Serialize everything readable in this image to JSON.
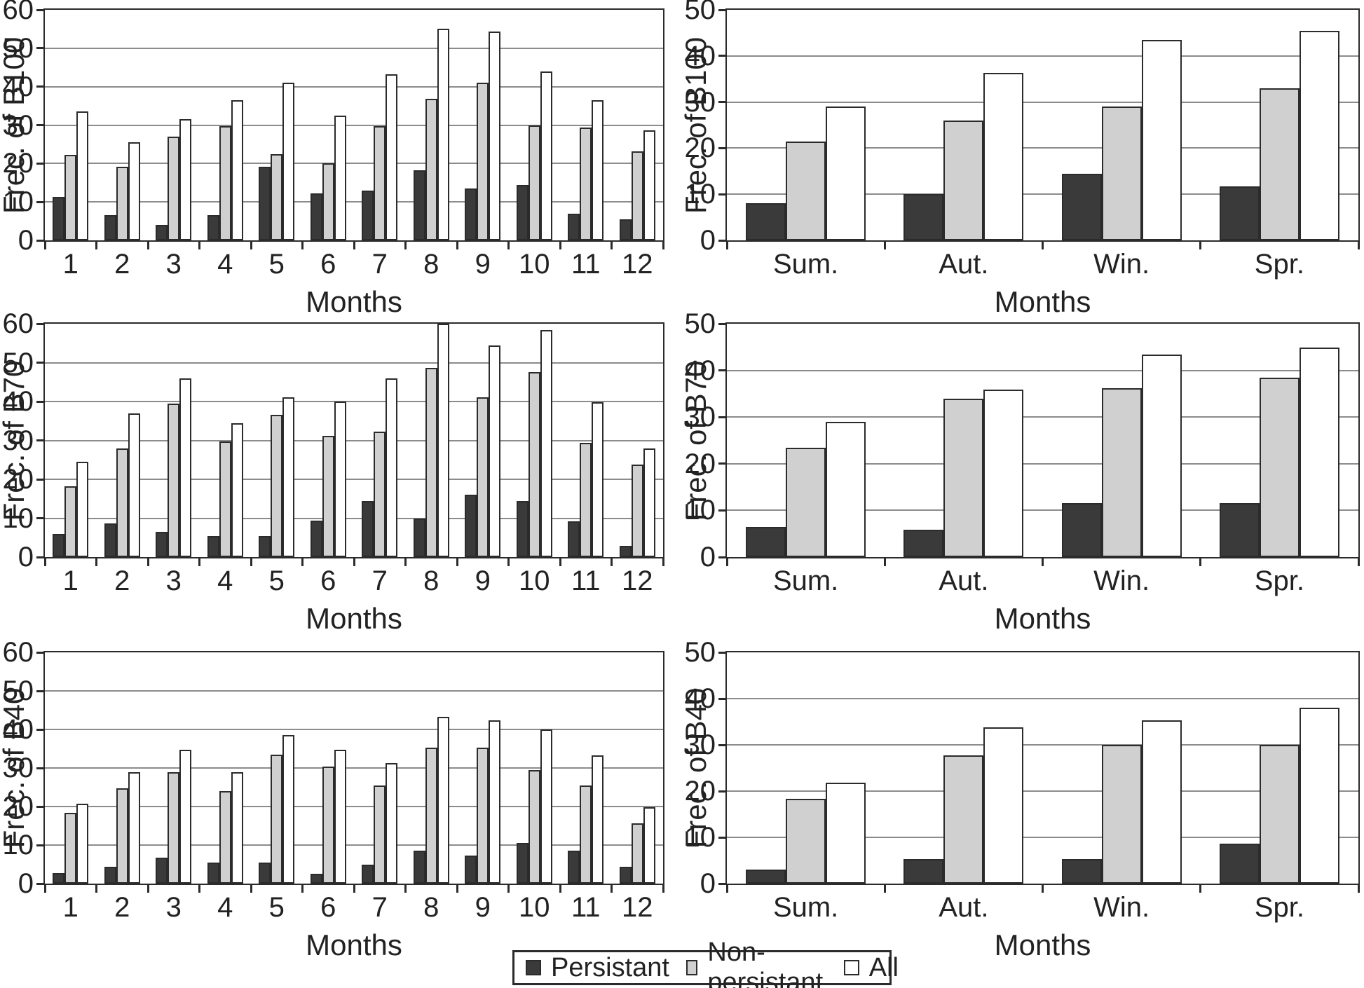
{
  "page": {
    "background": "#ffffff"
  },
  "colors": {
    "persistant": "#3a3a3a",
    "non_persistant": "#d0d0d0",
    "all": "#ffffff",
    "bar_border": "#2b2b2b",
    "gridline": "#8c8c8c",
    "axis": "#2b2b2b",
    "text": "#222222"
  },
  "legend": {
    "position": "bottom",
    "items": [
      {
        "label": "Persistant",
        "color": "#3a3a3a"
      },
      {
        "label": "Non-persistant",
        "color": "#d0d0d0"
      },
      {
        "label": "All",
        "color": "#ffffff"
      }
    ]
  },
  "chart_data": [
    {
      "id": "b100-by-month",
      "type": "bar",
      "title": "",
      "xlabel": "Months",
      "ylabel": "Frec. of B100",
      "ylim": [
        0,
        60
      ],
      "ytick_step": 10,
      "grid": true,
      "categories": [
        "1",
        "2",
        "3",
        "4",
        "5",
        "6",
        "7",
        "8",
        "9",
        "10",
        "11",
        "12"
      ],
      "series": [
        {
          "name": "Persistant",
          "values": [
            11.3,
            6.5,
            4,
            6.5,
            19.2,
            12.2,
            13,
            18.3,
            13.5,
            14.5,
            7,
            5.5
          ]
        },
        {
          "name": "Non-persistant",
          "values": [
            22.3,
            19.2,
            27,
            29.8,
            22.5,
            20,
            29.8,
            36.8,
            41,
            30,
            29.3,
            23.2
          ]
        },
        {
          "name": "All",
          "values": [
            33.5,
            25.5,
            31.5,
            36.5,
            41,
            32.5,
            43.3,
            55,
            54.3,
            44,
            36.5,
            28.7
          ]
        }
      ]
    },
    {
      "id": "b100-by-season",
      "type": "bar",
      "title": "",
      "xlabel": "Months",
      "ylabel": "Frec. of B100",
      "ylim": [
        0,
        50
      ],
      "ytick_step": 10,
      "grid": true,
      "categories": [
        "Sum.",
        "Aut.",
        "Win.",
        "Spr."
      ],
      "series": [
        {
          "name": "Persistant",
          "values": [
            8,
            10,
            14.5,
            11.7
          ]
        },
        {
          "name": "Non-persistant",
          "values": [
            21.5,
            26,
            29,
            33
          ]
        },
        {
          "name": "All",
          "values": [
            29,
            36.3,
            43.5,
            45.5
          ]
        }
      ]
    },
    {
      "id": "b70-by-month",
      "type": "bar",
      "title": "",
      "xlabel": "Months",
      "ylabel": "Frec. of B70",
      "ylim": [
        0,
        60
      ],
      "ytick_step": 10,
      "grid": true,
      "categories": [
        "1",
        "2",
        "3",
        "4",
        "5",
        "6",
        "7",
        "8",
        "9",
        "10",
        "11",
        "12"
      ],
      "series": [
        {
          "name": "Persistant",
          "values": [
            6,
            8.6,
            6.5,
            5.4,
            5.4,
            9.3,
            14.4,
            10,
            16.1,
            14.4,
            9.2,
            2.9
          ]
        },
        {
          "name": "Non-persistant",
          "values": [
            18.2,
            27.9,
            39.5,
            29.8,
            36.6,
            31.2,
            32.2,
            48.6,
            41,
            47.5,
            29.3,
            23.7
          ]
        },
        {
          "name": "All",
          "values": [
            24.5,
            36.9,
            45.9,
            34.5,
            41,
            40,
            45.9,
            60,
            54.5,
            58.4,
            39.9,
            27.9
          ]
        }
      ]
    },
    {
      "id": "b70-by-season",
      "type": "bar",
      "title": "",
      "xlabel": "Months",
      "ylabel": "Frec. of B70",
      "ylim": [
        0,
        50
      ],
      "ytick_step": 10,
      "grid": true,
      "categories": [
        "Sum.",
        "Aut.",
        "Win.",
        "Spr."
      ],
      "series": [
        {
          "name": "Persistant",
          "values": [
            6.4,
            5.9,
            11.6,
            11.6
          ]
        },
        {
          "name": "Non-persistant",
          "values": [
            23.4,
            34,
            36.2,
            38.5
          ]
        },
        {
          "name": "All",
          "values": [
            29,
            35.9,
            43.4,
            44.9
          ]
        }
      ]
    },
    {
      "id": "b40-by-month",
      "type": "bar",
      "title": "",
      "xlabel": "Months",
      "ylabel": "Frec. of B40",
      "ylim": [
        0,
        60
      ],
      "ytick_step": 10,
      "grid": true,
      "categories": [
        "1",
        "2",
        "3",
        "4",
        "5",
        "6",
        "7",
        "8",
        "9",
        "10",
        "11",
        "12"
      ],
      "series": [
        {
          "name": "Persistant",
          "values": [
            2.7,
            4.4,
            6.7,
            5.5,
            5.5,
            2.6,
            5,
            8.6,
            7.3,
            10.5,
            8.5,
            4.3
          ]
        },
        {
          "name": "Non-persistant",
          "values": [
            18.3,
            24.7,
            28.9,
            24,
            33.5,
            30.3,
            25.5,
            35.2,
            35.2,
            29.5,
            25.4,
            15.6
          ]
        },
        {
          "name": "All",
          "values": [
            20.7,
            29,
            34.7,
            28.9,
            38.5,
            34.7,
            31.2,
            43.3,
            42.3,
            40,
            33.3,
            19.9
          ]
        }
      ]
    },
    {
      "id": "b40-by-season",
      "type": "bar",
      "title": "",
      "xlabel": "Months",
      "ylabel": "Frec. of B40",
      "ylim": [
        0,
        50
      ],
      "ytick_step": 10,
      "grid": true,
      "categories": [
        "Sum.",
        "Aut.",
        "Win.",
        "Spr."
      ],
      "series": [
        {
          "name": "Persistant",
          "values": [
            3,
            5.3,
            5.3,
            8.6
          ]
        },
        {
          "name": "Non-persistant",
          "values": [
            18.3,
            27.8,
            30,
            30
          ]
        },
        {
          "name": "All",
          "values": [
            21.8,
            33.8,
            35.3,
            38
          ]
        }
      ]
    }
  ]
}
